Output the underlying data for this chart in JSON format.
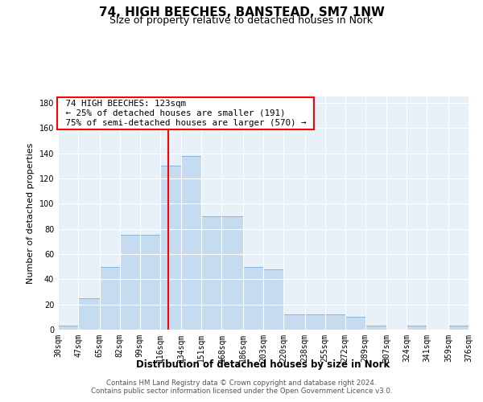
{
  "title": "74, HIGH BEECHES, BANSTEAD, SM7 1NW",
  "subtitle": "Size of property relative to detached houses in Nork",
  "xlabel": "Distribution of detached houses by size in Nork",
  "ylabel": "Number of detached properties",
  "footnote1": "Contains HM Land Registry data © Crown copyright and database right 2024.",
  "footnote2": "Contains public sector information licensed under the Open Government Licence v3.0.",
  "annotation_line1": "74 HIGH BEECHES: 123sqm",
  "annotation_line2": "← 25% of detached houses are smaller (191)",
  "annotation_line3": "75% of semi-detached houses are larger (570) →",
  "bar_color": "#c5dcf0",
  "bar_edge_color": "#7badd4",
  "red_line_x": 123,
  "bins": [
    30,
    47,
    65,
    82,
    99,
    116,
    134,
    151,
    168,
    186,
    203,
    220,
    238,
    255,
    272,
    289,
    307,
    324,
    341,
    359,
    376
  ],
  "bin_labels": [
    "30sqm",
    "47sqm",
    "65sqm",
    "82sqm",
    "99sqm",
    "116sqm",
    "134sqm",
    "151sqm",
    "168sqm",
    "186sqm",
    "203sqm",
    "220sqm",
    "238sqm",
    "255sqm",
    "272sqm",
    "289sqm",
    "307sqm",
    "324sqm",
    "341sqm",
    "359sqm",
    "376sqm"
  ],
  "values": [
    3,
    25,
    50,
    75,
    75,
    130,
    138,
    90,
    90,
    50,
    48,
    12,
    12,
    12,
    10,
    3,
    0,
    3,
    0,
    3,
    0
  ],
  "ylim": [
    0,
    185
  ],
  "yticks": [
    0,
    20,
    40,
    60,
    80,
    100,
    120,
    140,
    160,
    180
  ],
  "bg_color": "#ffffff",
  "plot_bg_color": "#e8f0f8",
  "grid_color": "#ffffff",
  "title_fontsize": 11,
  "subtitle_fontsize": 9,
  "xlabel_fontsize": 8.5,
  "ylabel_fontsize": 8,
  "tick_fontsize": 7
}
